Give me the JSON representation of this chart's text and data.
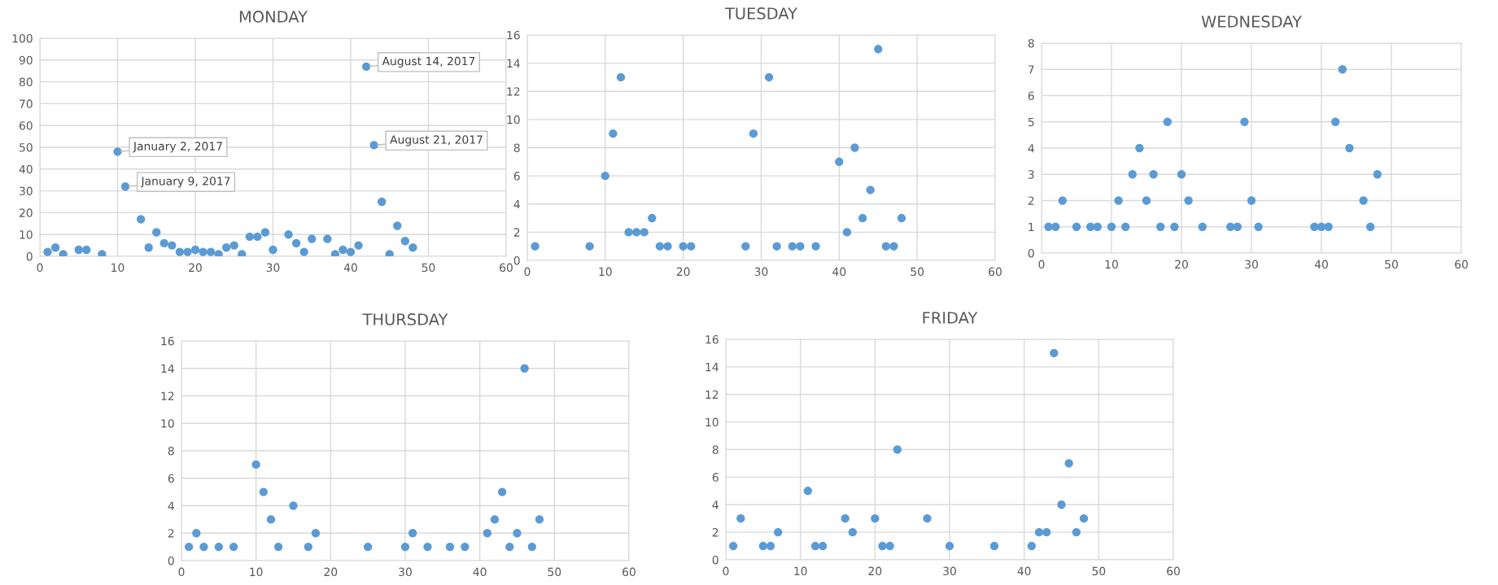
{
  "chart_data": [
    {
      "type": "scatter",
      "title": "MONDAY",
      "xlim": [
        0,
        60
      ],
      "xticks": [
        0,
        10,
        20,
        30,
        40,
        50,
        60
      ],
      "ylim": [
        0,
        100
      ],
      "yticks": [
        0,
        10,
        20,
        30,
        40,
        50,
        60,
        70,
        80,
        90,
        100
      ],
      "grid": true,
      "marker": "circle",
      "legend": false,
      "series": [
        {
          "color": "#5b9bd5",
          "x": [
            1,
            2,
            3,
            5,
            6,
            8,
            10,
            11,
            13,
            14,
            15,
            16,
            17,
            18,
            19,
            20,
            21,
            22,
            23,
            24,
            25,
            26,
            27,
            28,
            29,
            30,
            32,
            33,
            34,
            35,
            37,
            38,
            39,
            40,
            41,
            42,
            43,
            44,
            45,
            46,
            47,
            48
          ],
          "values": [
            2,
            4,
            1,
            3,
            3,
            1,
            48,
            32,
            17,
            4,
            11,
            6,
            5,
            2,
            2,
            3,
            2,
            2,
            1,
            4,
            5,
            1,
            9,
            9,
            11,
            3,
            10,
            6,
            2,
            8,
            8,
            1,
            3,
            2,
            5,
            87,
            51,
            25,
            1,
            14,
            7,
            4
          ]
        }
      ],
      "annotations": [
        {
          "text": "January 2, 2017",
          "x": 10,
          "y": 48
        },
        {
          "text": "January 9, 2017",
          "x": 11,
          "y": 32
        },
        {
          "text": "August 14, 2017",
          "x": 42,
          "y": 87
        },
        {
          "text": "August 21, 2017",
          "x": 43,
          "y": 51
        }
      ]
    },
    {
      "type": "scatter",
      "title": "TUESDAY",
      "xlim": [
        0,
        60
      ],
      "xticks": [
        0,
        10,
        20,
        30,
        40,
        50,
        60
      ],
      "ylim": [
        0,
        16
      ],
      "yticks": [
        0,
        2,
        4,
        6,
        8,
        10,
        12,
        14,
        16
      ],
      "grid": true,
      "marker": "circle",
      "legend": false,
      "series": [
        {
          "color": "#5b9bd5",
          "x": [
            1,
            8,
            10,
            11,
            12,
            13,
            14,
            15,
            16,
            17,
            18,
            20,
            21,
            28,
            29,
            31,
            32,
            34,
            35,
            37,
            40,
            41,
            42,
            43,
            44,
            45,
            46,
            47,
            48
          ],
          "values": [
            1,
            1,
            6,
            9,
            13,
            2,
            2,
            2,
            3,
            1,
            1,
            1,
            1,
            1,
            9,
            13,
            1,
            1,
            1,
            1,
            7,
            2,
            8,
            3,
            5,
            15,
            1,
            1,
            3
          ]
        }
      ]
    },
    {
      "type": "scatter",
      "title": "WEDNESDAY",
      "xlim": [
        0,
        60
      ],
      "xticks": [
        0,
        10,
        20,
        30,
        40,
        50,
        60
      ],
      "ylim": [
        0,
        8
      ],
      "yticks": [
        0,
        1,
        2,
        3,
        4,
        5,
        6,
        7,
        8
      ],
      "grid": true,
      "marker": "circle",
      "legend": false,
      "series": [
        {
          "color": "#5b9bd5",
          "x": [
            1,
            2,
            3,
            5,
            7,
            8,
            10,
            11,
            12,
            13,
            14,
            15,
            16,
            17,
            18,
            19,
            20,
            21,
            23,
            27,
            28,
            29,
            30,
            31,
            39,
            40,
            41,
            42,
            43,
            44,
            46,
            47,
            48
          ],
          "values": [
            1,
            1,
            2,
            1,
            1,
            1,
            1,
            2,
            1,
            3,
            4,
            2,
            3,
            1,
            5,
            1,
            3,
            2,
            1,
            1,
            1,
            5,
            2,
            1,
            1,
            1,
            1,
            5,
            7,
            4,
            2,
            1,
            3
          ]
        }
      ]
    },
    {
      "type": "scatter",
      "title": "THURSDAY",
      "xlim": [
        0,
        60
      ],
      "xticks": [
        0,
        10,
        20,
        30,
        40,
        50,
        60
      ],
      "ylim": [
        0,
        16
      ],
      "yticks": [
        0,
        2,
        4,
        6,
        8,
        10,
        12,
        14,
        16
      ],
      "grid": true,
      "marker": "circle",
      "legend": false,
      "series": [
        {
          "color": "#5b9bd5",
          "x": [
            1,
            2,
            3,
            5,
            7,
            10,
            11,
            12,
            13,
            15,
            17,
            18,
            25,
            30,
            31,
            33,
            36,
            38,
            41,
            42,
            43,
            44,
            45,
            46,
            47,
            48
          ],
          "values": [
            1,
            2,
            1,
            1,
            1,
            7,
            5,
            3,
            1,
            4,
            1,
            2,
            1,
            1,
            2,
            1,
            1,
            1,
            2,
            3,
            5,
            1,
            2,
            14,
            1,
            3
          ]
        }
      ]
    },
    {
      "type": "scatter",
      "title": "FRIDAY",
      "xlim": [
        0,
        60
      ],
      "xticks": [
        0,
        10,
        20,
        30,
        40,
        50,
        60
      ],
      "ylim": [
        0,
        16
      ],
      "yticks": [
        0,
        2,
        4,
        6,
        8,
        10,
        12,
        14,
        16
      ],
      "grid": true,
      "marker": "circle",
      "legend": false,
      "series": [
        {
          "color": "#5b9bd5",
          "x": [
            1,
            2,
            5,
            6,
            7,
            11,
            12,
            13,
            16,
            17,
            20,
            21,
            22,
            23,
            27,
            30,
            36,
            41,
            42,
            43,
            44,
            45,
            46,
            47,
            48
          ],
          "values": [
            1,
            3,
            1,
            1,
            2,
            5,
            1,
            1,
            3,
            2,
            3,
            1,
            1,
            8,
            3,
            1,
            1,
            1,
            2,
            2,
            15,
            4,
            7,
            2,
            3
          ]
        }
      ]
    }
  ]
}
